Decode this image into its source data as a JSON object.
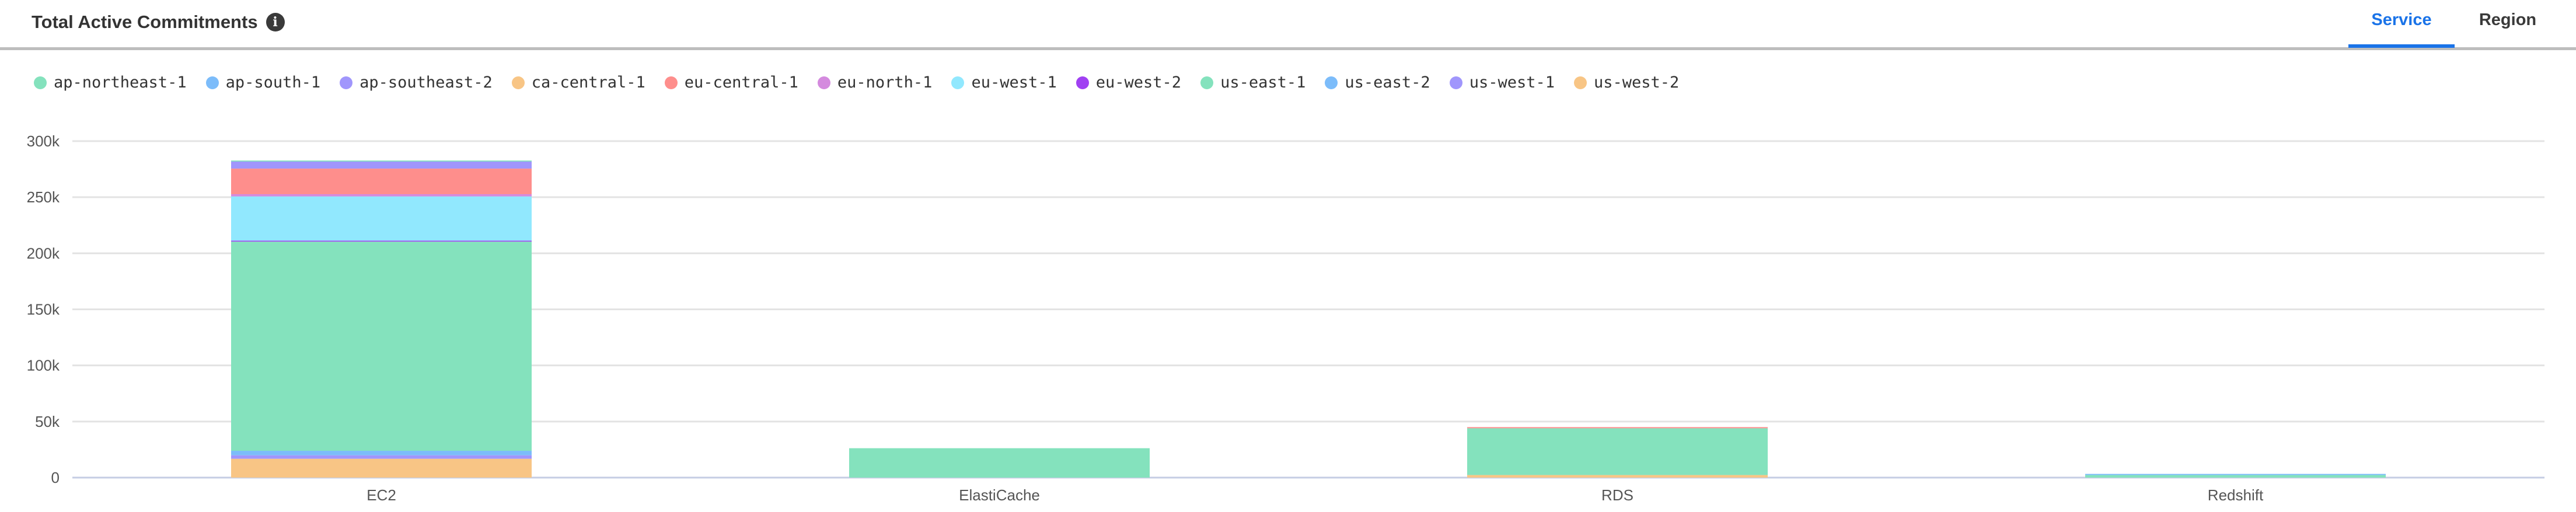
{
  "header": {
    "title": "Total Active Commitments",
    "info_icon": "info-icon"
  },
  "tabs": [
    {
      "label": "Service",
      "active": true
    },
    {
      "label": "Region",
      "active": false
    }
  ],
  "colors": {
    "accent": "#1a73e8"
  },
  "chart_data": {
    "type": "bar",
    "stacked": true,
    "title": "",
    "xlabel": "",
    "ylabel": "",
    "categories": [
      "EC2",
      "ElastiCache",
      "RDS",
      "Redshift"
    ],
    "ylim": [
      0,
      300000
    ],
    "yticks": [
      0,
      50000,
      100000,
      150000,
      200000,
      250000,
      300000
    ],
    "ytick_labels": [
      "0",
      "50k",
      "100k",
      "150k",
      "200k",
      "250k",
      "300k"
    ],
    "grid": true,
    "legend": "top-left",
    "series": [
      {
        "name": "ap-northeast-1",
        "color": "#84e2bd",
        "values": [
          900,
          0,
          0,
          0
        ]
      },
      {
        "name": "ap-south-1",
        "color": "#7cbcfa",
        "values": [
          0,
          0,
          0,
          1000
        ]
      },
      {
        "name": "ap-southeast-2",
        "color": "#a096fc",
        "values": [
          6300,
          0,
          0,
          0
        ]
      },
      {
        "name": "ca-central-1",
        "color": "#f8c585",
        "values": [
          0,
          0,
          0,
          0
        ]
      },
      {
        "name": "eu-central-1",
        "color": "#fe8e8c",
        "values": [
          22800,
          0,
          1000,
          0
        ]
      },
      {
        "name": "eu-north-1",
        "color": "#d48ade",
        "values": [
          2000,
          0,
          0,
          0
        ]
      },
      {
        "name": "eu-west-1",
        "color": "#91e8fe",
        "values": [
          39400,
          0,
          0,
          0
        ]
      },
      {
        "name": "eu-west-2",
        "color": "#a040f2",
        "values": [
          900,
          0,
          0,
          0
        ]
      },
      {
        "name": "us-east-1",
        "color": "#84e2bd",
        "values": [
          186500,
          26200,
          41700,
          2300
        ]
      },
      {
        "name": "us-east-2",
        "color": "#7cbcfa",
        "values": [
          4000,
          0,
          0,
          0
        ]
      },
      {
        "name": "us-west-1",
        "color": "#a096fc",
        "values": [
          3100,
          0,
          0,
          0
        ]
      },
      {
        "name": "us-west-2",
        "color": "#f8c585",
        "values": [
          16800,
          0,
          2300,
          0
        ]
      }
    ]
  }
}
